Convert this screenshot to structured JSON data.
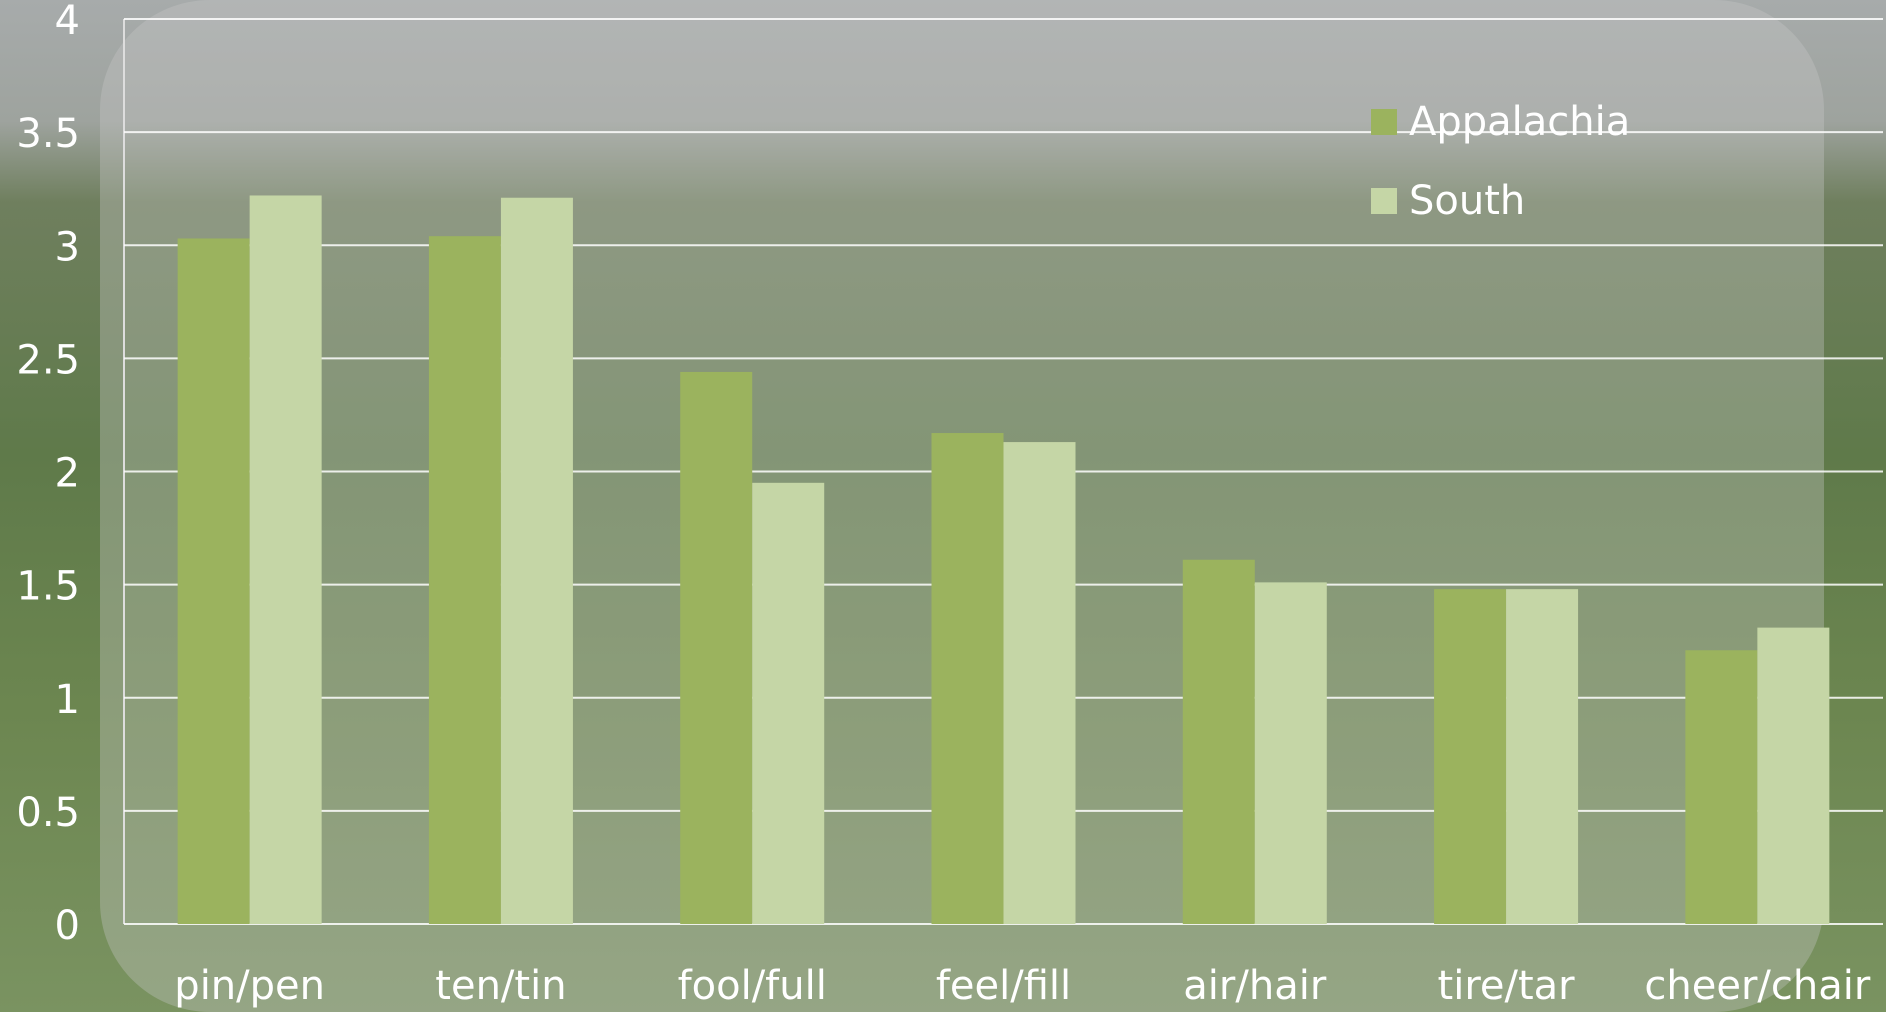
{
  "chart_data": {
    "type": "bar",
    "categories": [
      "pin/pen",
      "ten/tin",
      "fool/full",
      "feel/fill",
      "air/hair",
      "tire/tar",
      "cheer/chair"
    ],
    "series": [
      {
        "name": "Appalachia",
        "color": "#9bb35e",
        "values": [
          3.03,
          3.04,
          2.44,
          2.17,
          1.61,
          1.48,
          1.21
        ]
      },
      {
        "name": "South",
        "color": "#c5d6a6",
        "values": [
          3.22,
          3.21,
          1.95,
          2.13,
          1.51,
          1.48,
          1.31
        ]
      }
    ],
    "ylim": [
      0,
      4
    ],
    "yticks": [
      0,
      0.5,
      1,
      1.5,
      2,
      2.5,
      3,
      3.5,
      4
    ],
    "grid": true,
    "legend": "top-right"
  }
}
